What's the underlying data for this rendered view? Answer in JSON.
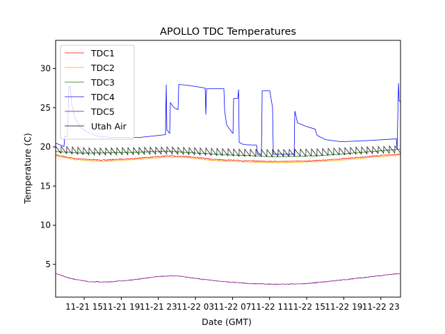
{
  "chart_data": {
    "type": "line",
    "title": "APOLLO TDC Temperatures",
    "xlabel": "Date (GMT)",
    "ylabel": "Temperature (C)",
    "x_units": "hours since 11-21 00:00 GMT",
    "xlim": [
      11.92,
      49.12
    ],
    "ylim": [
      0.82,
      33.6
    ],
    "xticks": [
      15,
      19,
      23,
      27,
      31,
      35,
      39,
      43,
      47
    ],
    "xtick_labels": [
      "11-21 15",
      "11-21 19",
      "11-21 23",
      "11-22 03",
      "11-22 07",
      "11-22 11",
      "11-22 15",
      "11-22 19",
      "11-22 23"
    ],
    "yticks": [
      5,
      10,
      15,
      20,
      25,
      30
    ],
    "ytick_labels": [
      "5",
      "10",
      "15",
      "20",
      "25",
      "30"
    ],
    "grid": false,
    "legend_position": "top-left",
    "series": [
      {
        "name": "TDC1",
        "color": "#ff0000",
        "points": [
          [
            11.92,
            19.0
          ],
          [
            14,
            18.5
          ],
          [
            17,
            18.3
          ],
          [
            20,
            18.5
          ],
          [
            24,
            18.85
          ],
          [
            26,
            18.8
          ],
          [
            29,
            18.4
          ],
          [
            33,
            18.2
          ],
          [
            36,
            18.15
          ],
          [
            39,
            18.2
          ],
          [
            42,
            18.4
          ],
          [
            46,
            18.8
          ],
          [
            49.12,
            19.1
          ]
        ]
      },
      {
        "name": "TDC2",
        "color": "#ffa500",
        "points": [
          [
            11.92,
            18.85
          ],
          [
            14,
            18.35
          ],
          [
            17,
            18.15
          ],
          [
            20,
            18.35
          ],
          [
            24,
            18.7
          ],
          [
            26,
            18.65
          ],
          [
            29,
            18.25
          ],
          [
            33,
            18.05
          ],
          [
            36,
            18.0
          ],
          [
            39,
            18.05
          ],
          [
            42,
            18.25
          ],
          [
            46,
            18.65
          ],
          [
            49.12,
            18.95
          ]
        ]
      },
      {
        "name": "TDC3",
        "color": "#008000",
        "points": [
          [
            11.92,
            19.4
          ],
          [
            15,
            19.2
          ],
          [
            20,
            19.3
          ],
          [
            24,
            19.45
          ],
          [
            28,
            19.15
          ],
          [
            32,
            18.9
          ],
          [
            36,
            18.75
          ],
          [
            40,
            18.85
          ],
          [
            44,
            19.2
          ],
          [
            49.12,
            19.7
          ]
        ]
      },
      {
        "name": "TDC4",
        "color": "#0000ff",
        "points": [
          [
            11.92,
            20.49
          ],
          [
            12.82,
            20.04
          ],
          [
            12.9,
            21.38
          ],
          [
            13.12,
            21.29
          ],
          [
            13.2,
            21.73
          ],
          [
            13.35,
            27.69
          ],
          [
            13.5,
            27.78
          ],
          [
            13.65,
            25.47
          ],
          [
            14.02,
            23.69
          ],
          [
            14.55,
            22.53
          ],
          [
            15.3,
            21.91
          ],
          [
            16.42,
            21.38
          ],
          [
            17.92,
            21.2
          ],
          [
            20.92,
            21.2
          ],
          [
            23.77,
            21.56
          ],
          [
            23.85,
            27.96
          ],
          [
            23.92,
            22.18
          ],
          [
            24.22,
            21.73
          ],
          [
            24.3,
            25.64
          ],
          [
            24.67,
            25.02
          ],
          [
            25.12,
            24.76
          ],
          [
            25.2,
            27.96
          ],
          [
            26.17,
            27.87
          ],
          [
            28.05,
            27.51
          ],
          [
            28.12,
            24.13
          ],
          [
            28.2,
            27.42
          ],
          [
            30.07,
            27.42
          ],
          [
            30.15,
            24.58
          ],
          [
            30.37,
            22.8
          ],
          [
            30.97,
            21.82
          ],
          [
            31.05,
            21.73
          ],
          [
            31.12,
            26.18
          ],
          [
            31.57,
            26.18
          ],
          [
            31.65,
            27.33
          ],
          [
            31.72,
            20.58
          ],
          [
            32.17,
            20.31
          ],
          [
            33.6,
            20.22
          ],
          [
            33.67,
            19.07
          ],
          [
            34.12,
            19.07
          ],
          [
            34.2,
            27.16
          ],
          [
            35.02,
            27.16
          ],
          [
            35.32,
            25.02
          ],
          [
            35.4,
            19.07
          ],
          [
            37.65,
            19.07
          ],
          [
            37.72,
            24.58
          ],
          [
            38.02,
            23.07
          ],
          [
            38.92,
            22.62
          ],
          [
            39.9,
            22.27
          ],
          [
            40.12,
            21.47
          ],
          [
            41.02,
            20.93
          ],
          [
            42.67,
            20.67
          ],
          [
            44.92,
            20.76
          ],
          [
            48.67,
            21.02
          ],
          [
            48.75,
            19.69
          ],
          [
            48.82,
            23.42
          ],
          [
            48.9,
            28.13
          ],
          [
            48.97,
            25.91
          ],
          [
            49.12,
            25.73
          ]
        ]
      },
      {
        "name": "TDC5",
        "color": "#800080",
        "points": [
          [
            11.92,
            3.85
          ],
          [
            13.5,
            3.2
          ],
          [
            15.5,
            2.8
          ],
          [
            17.5,
            2.75
          ],
          [
            20,
            3.0
          ],
          [
            23,
            3.45
          ],
          [
            25,
            3.55
          ],
          [
            27,
            3.2
          ],
          [
            30,
            2.8
          ],
          [
            33,
            2.55
          ],
          [
            36,
            2.45
          ],
          [
            39,
            2.55
          ],
          [
            42,
            2.9
          ],
          [
            45,
            3.3
          ],
          [
            49.12,
            3.85
          ]
        ]
      },
      {
        "name": "Utah Air",
        "color": "#000000",
        "sawtooth": {
          "period_hours": 0.6,
          "amplitude": 0.9
        },
        "points": [
          [
            11.92,
            19.2
          ],
          [
            16,
            18.95
          ],
          [
            20,
            19.0
          ],
          [
            24,
            19.1
          ],
          [
            28,
            18.95
          ],
          [
            32,
            18.8
          ],
          [
            36,
            18.75
          ],
          [
            40,
            18.85
          ],
          [
            44,
            19.05
          ],
          [
            49.12,
            19.25
          ]
        ]
      }
    ]
  }
}
